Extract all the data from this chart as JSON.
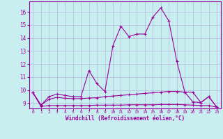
{
  "xlabel": "Windchill (Refroidissement éolien,°C)",
  "bg_color": "#c8eef0",
  "grid_color": "#b0b8d8",
  "line_color": "#990099",
  "x_values": [
    0,
    1,
    2,
    3,
    4,
    5,
    6,
    7,
    8,
    9,
    10,
    11,
    12,
    13,
    14,
    15,
    16,
    17,
    18,
    19,
    20,
    21,
    22,
    23
  ],
  "series1": [
    9.8,
    8.85,
    9.5,
    9.7,
    9.6,
    9.5,
    9.5,
    11.5,
    10.5,
    9.9,
    13.4,
    14.9,
    14.1,
    14.3,
    14.3,
    15.6,
    16.3,
    15.3,
    12.2,
    9.85,
    9.85,
    9.05,
    9.5,
    8.7
  ],
  "series2": [
    9.8,
    8.85,
    9.3,
    9.45,
    9.38,
    9.35,
    9.35,
    9.4,
    9.42,
    9.5,
    9.55,
    9.6,
    9.65,
    9.7,
    9.75,
    9.8,
    9.85,
    9.9,
    9.9,
    9.85,
    9.1,
    9.05,
    9.5,
    8.7
  ],
  "series3": [
    9.8,
    8.75,
    8.82,
    8.82,
    8.82,
    8.82,
    8.82,
    8.82,
    8.85,
    8.85,
    8.85,
    8.85,
    8.88,
    8.88,
    8.88,
    8.88,
    8.9,
    8.9,
    8.9,
    8.88,
    8.85,
    8.82,
    8.82,
    8.7
  ],
  "ylim": [
    8.6,
    16.8
  ],
  "yticks": [
    9,
    10,
    11,
    12,
    13,
    14,
    15,
    16
  ],
  "xlim": [
    -0.5,
    23.5
  ],
  "xticks": [
    0,
    1,
    2,
    3,
    4,
    5,
    6,
    7,
    8,
    9,
    10,
    11,
    12,
    13,
    14,
    15,
    16,
    17,
    18,
    19,
    20,
    21,
    22,
    23
  ]
}
